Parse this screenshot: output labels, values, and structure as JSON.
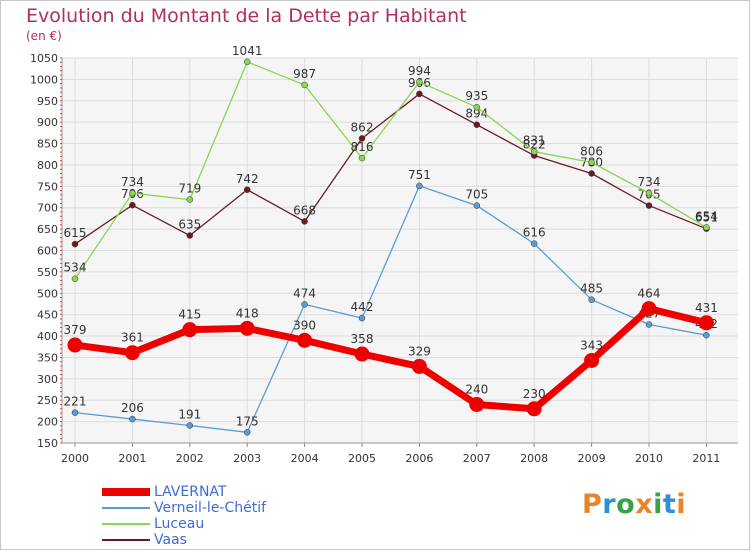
{
  "header": {
    "title": "Evolution du Montant de la Dette par Habitant",
    "subtitle": "(en €)"
  },
  "logo": {
    "text": "Proxiti",
    "colors": [
      "#e8842a",
      "#2e8fd6",
      "#3aa34a",
      "#e8842a",
      "#3aa34a",
      "#2e8fd6",
      "#e8842a"
    ]
  },
  "chart_data": {
    "type": "line",
    "title": "Evolution du Montant de la Dette par Habitant",
    "ylabel": "(en €)",
    "xlabel": "",
    "ylim": [
      150,
      1050
    ],
    "yticks": [
      150,
      200,
      250,
      300,
      350,
      400,
      450,
      500,
      550,
      600,
      650,
      700,
      750,
      800,
      850,
      900,
      950,
      1000,
      1050
    ],
    "categories": [
      "2000",
      "2001",
      "2002",
      "2003",
      "2004",
      "2005",
      "2006",
      "2007",
      "2008",
      "2009",
      "2010",
      "2011"
    ],
    "grid": true,
    "legend_position": "bottom-left",
    "series": [
      {
        "name": "Vaas",
        "color": "#6b1a24",
        "values": [
          615,
          706,
          635,
          742,
          668,
          862,
          966,
          894,
          822,
          780,
          705,
          651
        ]
      },
      {
        "name": "Luceau",
        "color": "#8ad650",
        "values": [
          534,
          734,
          719,
          1041,
          987,
          816,
          994,
          935,
          831,
          806,
          734,
          654
        ]
      },
      {
        "name": "Verneil-le-Chétif",
        "color": "#5a9bd5",
        "values": [
          221,
          206,
          191,
          175,
          474,
          442,
          751,
          705,
          616,
          485,
          427,
          402
        ]
      },
      {
        "name": "LAVERNAT",
        "color": "#ee0000",
        "values": [
          379,
          361,
          415,
          418,
          390,
          358,
          329,
          240,
          230,
          343,
          464,
          431
        ]
      }
    ],
    "legend": [
      "LAVERNAT",
      "Verneil-le-Chétif",
      "Luceau",
      "Vaas"
    ]
  }
}
